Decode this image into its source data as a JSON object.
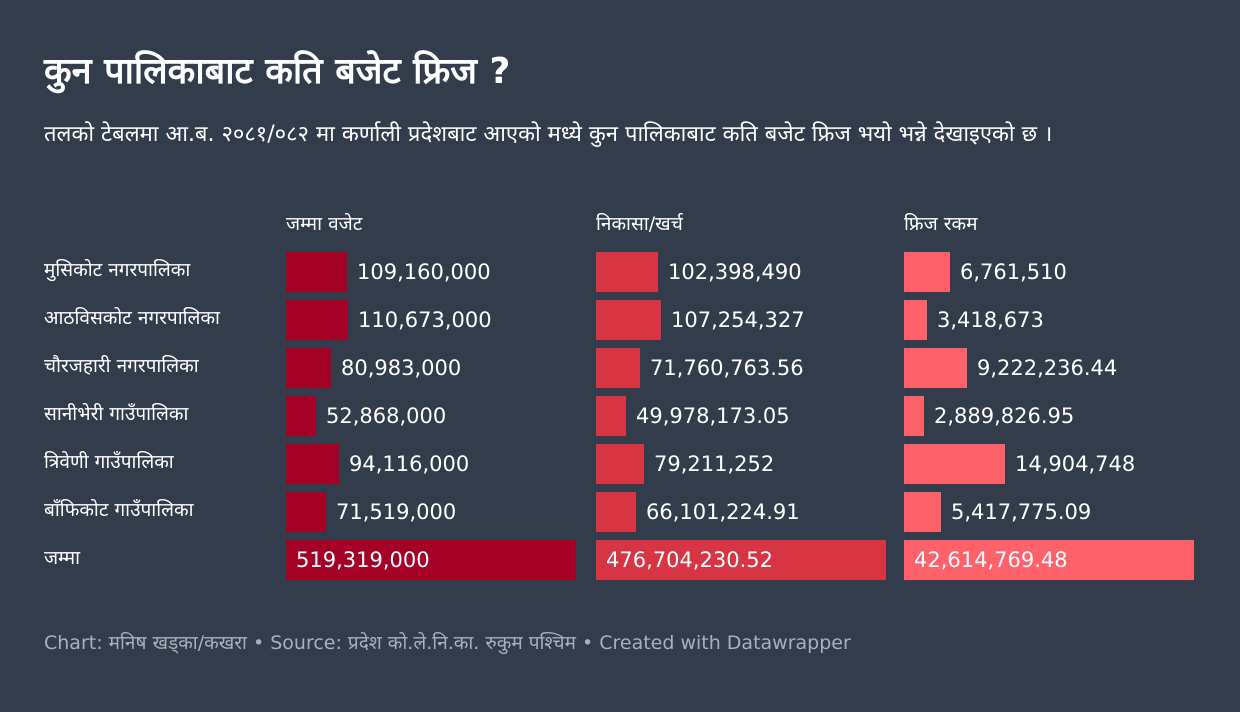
{
  "title": "कुन पालिकाबाट कति बजेट फ्रिज ?",
  "description": "तलको टेबलमा आ.ब. २०८१/०८२ मा कर्णाली प्रदेशबाट आएको मध्ये कुन पालिकाबाट कति बजेट फ्रिज भयो भन्ने देखाइएको छ ।",
  "footer": "Chart: मनिष खड्का/कखरा • Source: प्रदेश को.ले.नि.का. रुकुम पश्चिम • Created with Datawrapper",
  "colors": {
    "background": "#333c4b",
    "budget": "#a50026",
    "spent": "#d73444",
    "frozen": "#ff616b"
  },
  "chart_data": {
    "type": "table",
    "columns": [
      "जम्मा वजेट",
      "निकासा/खर्च",
      "फ्रिज रकम"
    ],
    "rows": [
      {
        "name": "मुसिकोट नगरपालिका",
        "values": [
          109160000,
          102398490,
          6761510
        ],
        "labels": [
          "109,160,000",
          "102,398,490",
          "6,761,510"
        ]
      },
      {
        "name": "आठविसकोट नगरपालिका",
        "values": [
          110673000,
          107254327,
          3418673
        ],
        "labels": [
          "110,673,000",
          "107,254,327",
          "3,418,673"
        ]
      },
      {
        "name": "चौरजहारी नगरपालिका",
        "values": [
          80983000,
          71760763.56,
          9222236.44
        ],
        "labels": [
          "80,983,000",
          "71,760,763.56",
          "9,222,236.44"
        ]
      },
      {
        "name": "सानीभेरी गाउँपालिका",
        "values": [
          52868000,
          49978173.05,
          2889826.95
        ],
        "labels": [
          "52,868,000",
          "49,978,173.05",
          "2,889,826.95"
        ]
      },
      {
        "name": "त्रिवेणी गाउँपालिका",
        "values": [
          94116000,
          79211252,
          14904748
        ],
        "labels": [
          "94,116,000",
          "79,211,252",
          "14,904,748"
        ]
      },
      {
        "name": "बाँफिकोट गाउँपालिका",
        "values": [
          71519000,
          66101224.91,
          5417775.09
        ],
        "labels": [
          "71,519,000",
          "66,101,224.91",
          "5,417,775.09"
        ]
      },
      {
        "name": "जम्मा",
        "values": [
          519319000,
          476704230.52,
          42614769.48
        ],
        "labels": [
          "519,319,000",
          "476,704,230.52",
          "42,614,769.48"
        ]
      }
    ]
  }
}
